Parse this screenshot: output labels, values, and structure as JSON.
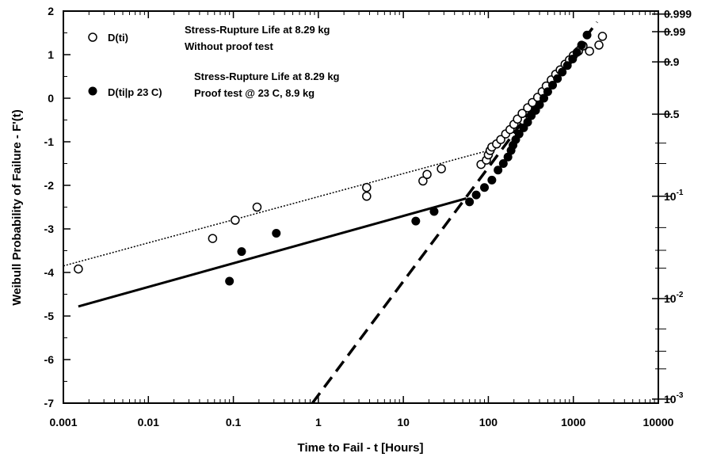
{
  "chart_data": {
    "type": "scatter",
    "xlabel": "Time to Fail - t [Hours]",
    "ylabel": "Weibull Probability of Failure - F'(t)",
    "xscale": "log",
    "xlim": [
      0.001,
      10000
    ],
    "ylim": [
      -7,
      2
    ],
    "x_tick_labels": [
      "0.001",
      "0.01",
      "0.1",
      "1",
      "10",
      "100",
      "1000",
      "10000"
    ],
    "x_tick_values": [
      0.001,
      0.01,
      0.1,
      1,
      10,
      100,
      1000,
      10000
    ],
    "y_tick_values": [
      -7,
      -6,
      -5,
      -4,
      -3,
      -2,
      -1,
      0,
      1,
      2
    ],
    "y_tick_labels": [
      "-7",
      "-6",
      "-5",
      "-4",
      "-3",
      "-2",
      "-1",
      "0",
      "1",
      "2"
    ],
    "right_axis_ticks": [
      {
        "label": "0.999",
        "prob": 0.999
      },
      {
        "label": "0.99",
        "prob": 0.99
      },
      {
        "label": "0.9",
        "prob": 0.9
      },
      {
        "label": "0.5",
        "prob": 0.5
      },
      {
        "label": "10",
        "sup": "-1",
        "prob": 0.1
      },
      {
        "label": "10",
        "sup": "-2",
        "prob": 0.01
      },
      {
        "label": "10",
        "sup": "-3",
        "prob": 0.001
      }
    ],
    "right_axis_minor_probs": [
      0.2,
      0.3,
      0.05,
      0.03,
      0.02,
      0.005,
      0.003,
      0.002
    ],
    "legend": {
      "position": "top-left",
      "entries": [
        {
          "symbol": "open-circle",
          "name": "D(ti)",
          "line1": "Stress-Rupture Life at 8.29 kg",
          "line2": "Without proof test"
        },
        {
          "symbol": "filled-circle",
          "name": "D(ti|p 23 C)",
          "line1": "Stress-Rupture Life at 8.29 kg",
          "line2": "Proof test @ 23 C, 8.9 kg"
        }
      ]
    },
    "series": [
      {
        "name": "D(ti)",
        "marker": "open-circle",
        "x": [
          0.0015,
          0.057,
          0.105,
          0.19,
          3.7,
          3.7,
          17,
          19,
          28,
          82,
          95,
          100,
          105,
          110,
          125,
          140,
          160,
          180,
          200,
          220,
          250,
          290,
          330,
          380,
          430,
          480,
          550,
          620,
          700,
          800,
          900,
          1000,
          1150,
          1300,
          1550,
          2000,
          2200
        ],
        "y": [
          -3.92,
          -3.22,
          -2.8,
          -2.5,
          -2.05,
          -2.25,
          -1.9,
          -1.75,
          -1.62,
          -1.52,
          -1.42,
          -1.3,
          -1.2,
          -1.12,
          -1.05,
          -0.95,
          -0.82,
          -0.72,
          -0.6,
          -0.48,
          -0.35,
          -0.22,
          -0.1,
          0.02,
          0.15,
          0.28,
          0.42,
          0.55,
          0.65,
          0.78,
          0.88,
          0.98,
          1.08,
          1.2,
          1.08,
          1.22,
          1.42
        ]
      },
      {
        "name": "D(ti|p 23 C)",
        "marker": "filled-circle",
        "x": [
          0.09,
          0.125,
          0.32,
          14,
          23,
          60,
          72,
          90,
          110,
          130,
          150,
          170,
          185,
          195,
          210,
          230,
          260,
          290,
          320,
          360,
          400,
          450,
          500,
          570,
          650,
          740,
          850,
          980,
          1100,
          1250,
          1450
        ],
        "y": [
          -4.2,
          -3.52,
          -3.1,
          -2.82,
          -2.6,
          -2.38,
          -2.22,
          -2.05,
          -1.88,
          -1.65,
          -1.5,
          -1.35,
          -1.2,
          -1.08,
          -0.95,
          -0.82,
          -0.68,
          -0.55,
          -0.4,
          -0.28,
          -0.15,
          0.0,
          0.15,
          0.3,
          0.45,
          0.6,
          0.75,
          0.9,
          1.05,
          1.22,
          1.45
        ]
      }
    ],
    "fit_lines": [
      {
        "name": "D(ti) fit",
        "style": "dotted",
        "x": [
          0.001,
          100
        ],
        "y": [
          -3.85,
          -1.2
        ]
      },
      {
        "name": "D(ti|p 23 C) fit",
        "style": "solid",
        "x": [
          0.0015,
          55
        ],
        "y": [
          -4.78,
          -2.3
        ]
      },
      {
        "name": "upper fit",
        "style": "dashed",
        "x": [
          0.85,
          1900
        ],
        "y": [
          -7.0,
          1.75
        ]
      }
    ]
  }
}
